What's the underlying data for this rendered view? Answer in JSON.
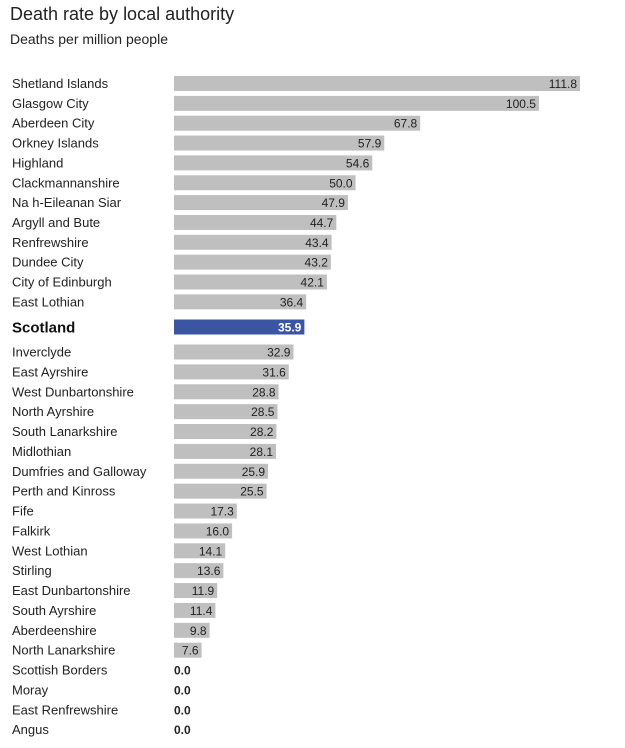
{
  "title": "Death rate by local authority",
  "subtitle": "Deaths per million people",
  "colors": {
    "bar": "#bfbfbf",
    "highlight": "#3a55a4"
  },
  "chart_data": {
    "type": "bar",
    "orientation": "horizontal",
    "title": "Death rate by local authority",
    "subtitle": "Deaths per million people",
    "highlight": "Scotland",
    "categories": [
      "Shetland Islands",
      "Glasgow City",
      "Aberdeen City",
      "Orkney Islands",
      "Highland",
      "Clackmannanshire",
      "Na h-Eileanan Siar",
      "Argyll and Bute",
      "Renfrewshire",
      "Dundee City",
      "City of Edinburgh",
      "East Lothian",
      "Scotland",
      "Inverclyde",
      "East Ayrshire",
      "West Dunbartonshire",
      "North Ayrshire",
      "South Lanarkshire",
      "Midlothian",
      "Dumfries and Galloway",
      "Perth and Kinross",
      "Fife",
      "Falkirk",
      "West Lothian",
      "Stirling",
      "East Dunbartonshire",
      "South Ayrshire",
      "Aberdeenshire",
      "North Lanarkshire",
      "Scottish Borders",
      "Moray",
      "East Renfrewshire",
      "Angus"
    ],
    "values": [
      111.8,
      100.5,
      67.8,
      57.9,
      54.6,
      50.0,
      47.9,
      44.7,
      43.4,
      43.2,
      42.1,
      36.4,
      35.9,
      32.9,
      31.6,
      28.8,
      28.5,
      28.2,
      28.1,
      25.9,
      25.5,
      17.3,
      16.0,
      14.1,
      13.6,
      11.9,
      11.4,
      9.8,
      7.6,
      0.0,
      0.0,
      0.0,
      0.0
    ],
    "labels": [
      "111.8",
      "100.5",
      "67.8",
      "57.9",
      "54.6",
      "50.0",
      "47.9",
      "44.7",
      "43.4",
      "43.2",
      "42.1",
      "36.4",
      "35.9",
      "32.9",
      "31.6",
      "28.8",
      "28.5",
      "28.2",
      "28.1",
      "25.9",
      "25.5",
      "17.3",
      "16.0",
      "14.1",
      "13.6",
      "11.9",
      "11.4",
      "9.8",
      "7.6",
      "0.0",
      "0.0",
      "0.0",
      "0.0"
    ],
    "xlim": [
      0,
      111.8
    ]
  }
}
